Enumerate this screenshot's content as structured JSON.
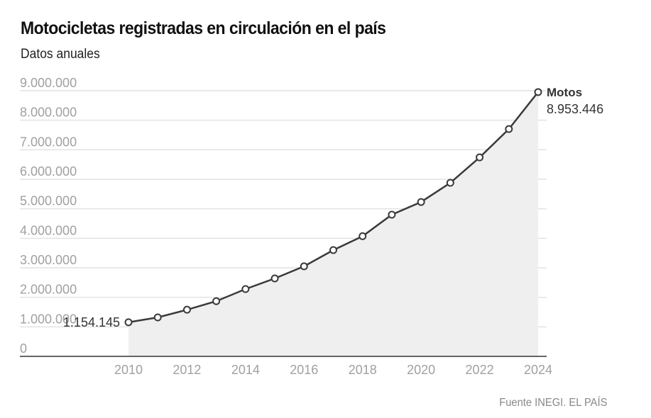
{
  "header": {
    "title": "Motocicletas registradas en circulación en el país",
    "subtitle": "Datos anuales"
  },
  "footer": {
    "source": "Fuente INEGI. EL PAÍS"
  },
  "colors": {
    "line": "#3a3a3a",
    "area": "#efefef",
    "grid": "#e2e2e2",
    "axis": "#333333",
    "tick_text": "#a0a0a0"
  },
  "chart_data": {
    "type": "area",
    "title": "Motocicletas registradas en circulación en el país",
    "subtitle": "Datos anuales",
    "xlabel": "",
    "ylabel": "",
    "x": [
      2010,
      2011,
      2012,
      2013,
      2014,
      2015,
      2016,
      2017,
      2018,
      2019,
      2020,
      2021,
      2022,
      2023,
      2024
    ],
    "series": [
      {
        "name": "Motos",
        "values": [
          1154145,
          1320000,
          1580000,
          1870000,
          2280000,
          2640000,
          3050000,
          3600000,
          4070000,
          4800000,
          5230000,
          5880000,
          6740000,
          7700000,
          8953446
        ]
      }
    ],
    "ylim": [
      0,
      9000000
    ],
    "xlim": [
      2010,
      2024
    ],
    "yticks": [
      0,
      1000000,
      2000000,
      3000000,
      4000000,
      5000000,
      6000000,
      7000000,
      8000000,
      9000000
    ],
    "ytick_labels": [
      "0",
      "1.000.000",
      "2.000.000",
      "3.000.000",
      "4.000.000",
      "5.000.000",
      "6.000.000",
      "7.000.000",
      "8.000.000",
      "9.000.000"
    ],
    "xticks": [
      2010,
      2012,
      2014,
      2016,
      2018,
      2020,
      2022,
      2024
    ],
    "xtick_labels": [
      "2010",
      "2012",
      "2014",
      "2016",
      "2018",
      "2020",
      "2022",
      "2024"
    ],
    "annotations": {
      "start_label": "1.154.145",
      "end_series_label": "Motos",
      "end_value_label": "8.953.446"
    },
    "grid": true,
    "legend": "inline-end"
  }
}
